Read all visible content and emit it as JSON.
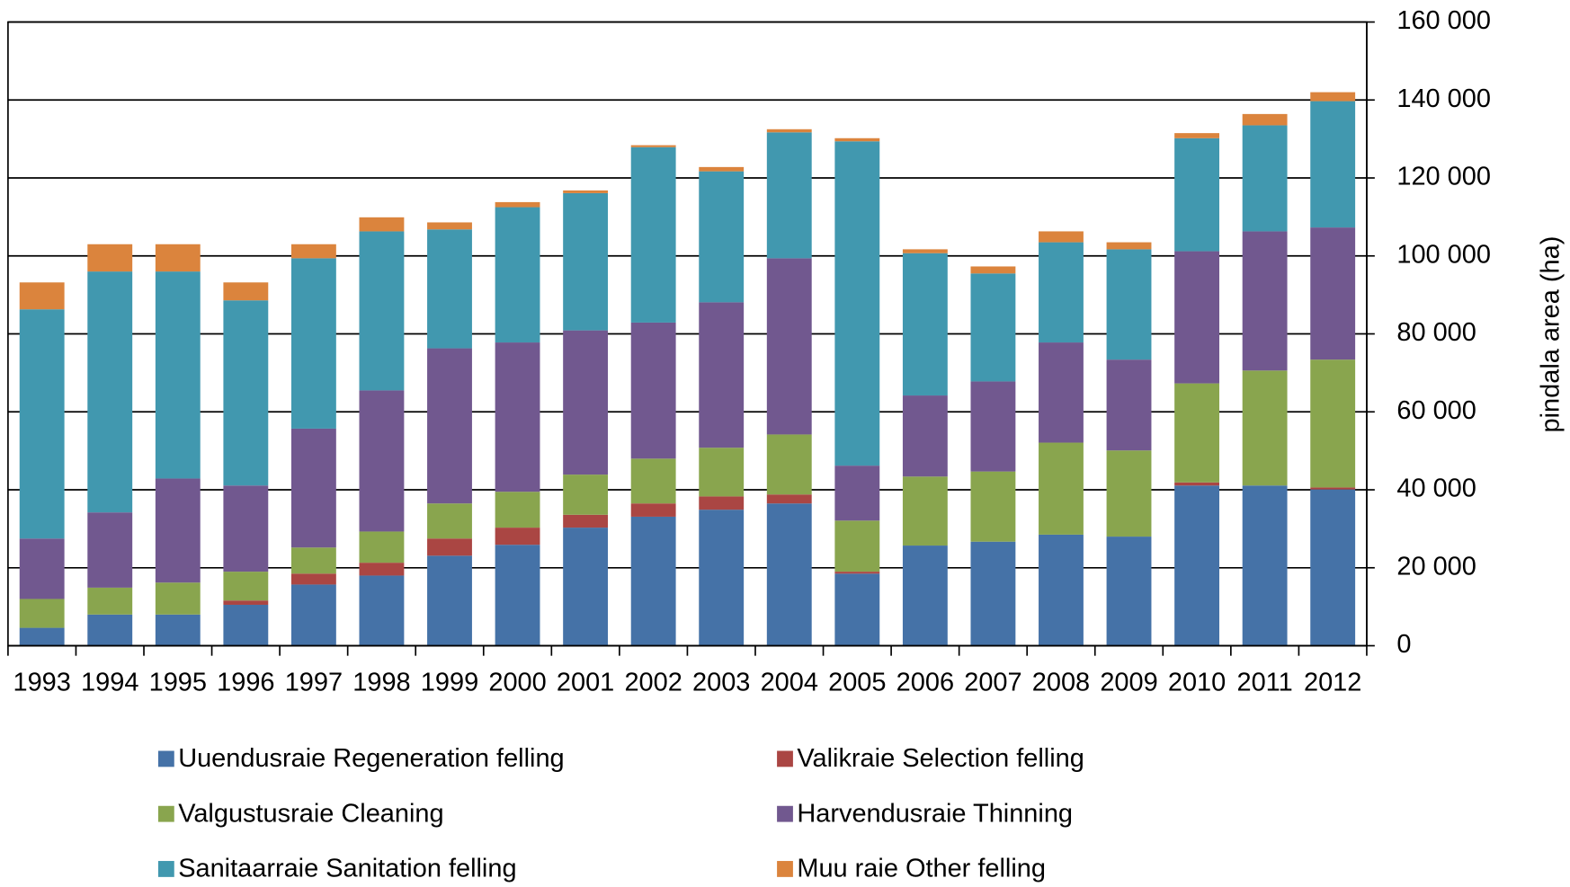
{
  "chart_data": {
    "type": "stacked_bar",
    "y_label": "pindala area (ha)",
    "categories": [
      "1993",
      "1994",
      "1995",
      "1996",
      "1997",
      "1998",
      "1999",
      "2000",
      "2001",
      "2002",
      "2003",
      "2004",
      "2005",
      "2006",
      "2007",
      "2008",
      "2009",
      "2010",
      "2011",
      "2012"
    ],
    "series": [
      {
        "name": "Uuendusraie Regeneration felling",
        "color": "#4572a7",
        "values": [
          4600,
          8000,
          8000,
          10500,
          15700,
          18000,
          23100,
          25900,
          30300,
          33100,
          34900,
          36500,
          18500,
          25700,
          26700,
          28500,
          28000,
          41100,
          41100,
          40100
        ]
      },
      {
        "name": "Valikraie Selection felling",
        "color": "#aa4643",
        "values": [
          0,
          0,
          0,
          1100,
          2800,
          3300,
          4400,
          4400,
          3300,
          3400,
          3400,
          2300,
          500,
          0,
          0,
          0,
          0,
          800,
          0,
          500
        ]
      },
      {
        "name": "Valgustusraie Cleaning",
        "color": "#89a54e",
        "values": [
          7400,
          6900,
          8200,
          7400,
          6700,
          8000,
          9000,
          9200,
          10300,
          11500,
          12500,
          15400,
          13100,
          17700,
          18000,
          23600,
          22100,
          25400,
          29500,
          32800
        ]
      },
      {
        "name": "Harvendusraie Thinning",
        "color": "#71588f",
        "values": [
          15500,
          19300,
          26700,
          22100,
          30500,
          36200,
          39800,
          38300,
          37000,
          34900,
          37300,
          45200,
          14100,
          20800,
          23100,
          25700,
          23300,
          33900,
          35700,
          33900
        ]
      },
      {
        "name": "Sanitaarraie Sanitation felling",
        "color": "#4198af",
        "values": [
          58800,
          61800,
          53100,
          47500,
          43700,
          40800,
          30500,
          34700,
          35200,
          45000,
          33600,
          32300,
          83200,
          36500,
          27700,
          25700,
          28300,
          29000,
          27200,
          32400
        ]
      },
      {
        "name": "Muu raie Other felling",
        "color": "#db843d",
        "values": [
          6900,
          7000,
          7000,
          4600,
          3600,
          3600,
          1800,
          1300,
          700,
          500,
          1100,
          800,
          800,
          1000,
          1800,
          2800,
          1800,
          1300,
          2900,
          2300
        ]
      }
    ],
    "ylim": [
      0,
      160000
    ],
    "yticks": [
      0,
      {
        "value": 20000,
        "label": "20 000"
      },
      {
        "value": 40000,
        "label": "40 000"
      },
      {
        "value": 60000,
        "label": "60 000"
      },
      {
        "value": 80000,
        "label": "80 000"
      },
      {
        "value": 100000,
        "label": "100 000"
      },
      {
        "value": 120000,
        "label": "120 000"
      },
      {
        "value": 140000,
        "label": "140 000"
      },
      {
        "value": 160000,
        "label": "160 000"
      }
    ],
    "grid": true,
    "legend": "bottom"
  }
}
